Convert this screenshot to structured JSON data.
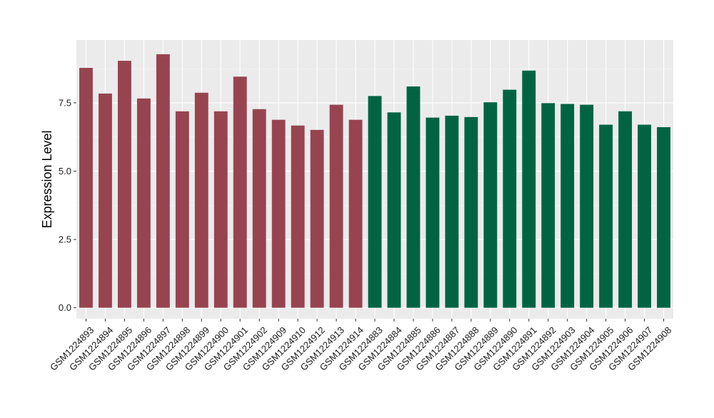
{
  "chart_data": {
    "type": "bar",
    "ylabel": "Expression Level",
    "xlabel": "",
    "title": "",
    "ylim": [
      -0.4,
      9.8
    ],
    "yticks": [
      0.0,
      2.5,
      5.0,
      7.5
    ],
    "ytick_labels": [
      "0.0",
      "2.5",
      "5.0",
      "7.5"
    ],
    "grid": true,
    "legend": "none",
    "categories": [
      "GSM1224893",
      "GSM1224894",
      "GSM1224895",
      "GSM1224896",
      "GSM1224897",
      "GSM1224898",
      "GSM1224899",
      "GSM1224900",
      "GSM1224901",
      "GSM1224902",
      "GSM1224909",
      "GSM1224910",
      "GSM1224912",
      "GSM1224913",
      "GSM1224914",
      "GSM1224883",
      "GSM1224884",
      "GSM1224885",
      "GSM1224886",
      "GSM1224887",
      "GSM1224888",
      "GSM1224889",
      "GSM1224890",
      "GSM1224891",
      "GSM1224892",
      "GSM1224903",
      "GSM1224904",
      "GSM1224905",
      "GSM1224906",
      "GSM1224907",
      "GSM1224908"
    ],
    "values": [
      8.78,
      7.84,
      9.04,
      7.66,
      9.28,
      7.19,
      7.87,
      7.19,
      8.46,
      7.27,
      6.88,
      6.67,
      6.51,
      7.43,
      6.88,
      7.75,
      7.15,
      8.1,
      6.96,
      7.03,
      6.98,
      7.52,
      7.98,
      8.68,
      7.49,
      7.46,
      7.43,
      6.7,
      7.19,
      6.7,
      6.61
    ],
    "group_sizes": [
      15,
      16
    ],
    "colors": [
      "#974450",
      "#006443"
    ]
  },
  "style": {
    "panel_bg": "#EBEBEB",
    "grid_major": "#FFFFFF",
    "grid_minor": "#F5F5F5",
    "text_color": "#000000",
    "tick_text_color": "#1A1A1A",
    "tick_color": "#333333"
  }
}
